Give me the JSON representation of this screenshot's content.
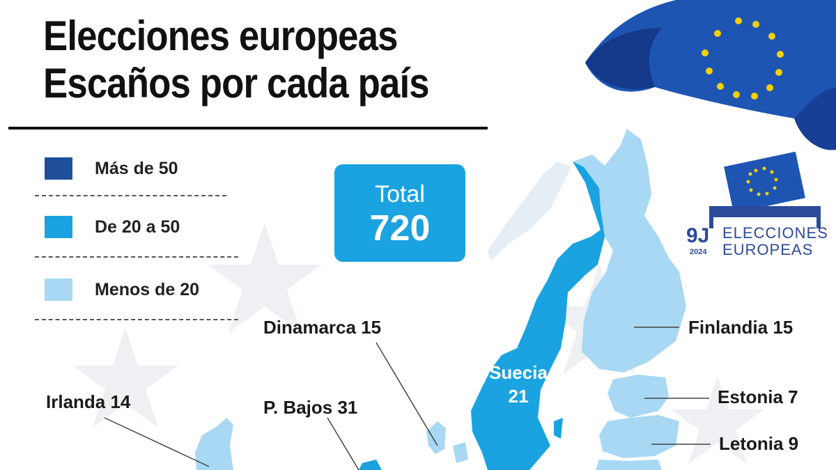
{
  "title": {
    "line1": "Elecciones europeas",
    "line2": "Escaños por cada país"
  },
  "legend": [
    {
      "label": "Más de 50",
      "color": "#1f4e9b"
    },
    {
      "label": "De 20 a 50",
      "color": "#1aa3e0"
    },
    {
      "label": "Menos de 20",
      "color": "#a8d8f3"
    }
  ],
  "total": {
    "label": "Total",
    "value": "720"
  },
  "countries": [
    {
      "name": "Dinamarca 15"
    },
    {
      "name": "Finlandia 15"
    },
    {
      "name": "Suecia",
      "seats": "21"
    },
    {
      "name": "Irlanda 14"
    },
    {
      "name": "P. Bajos 31"
    },
    {
      "name": "Estonia 7"
    },
    {
      "name": "Letonia 9"
    }
  ],
  "logo": {
    "brand": "9J",
    "year": "2024",
    "line1": "ELECCIONES",
    "line2": "EUROPEAS"
  },
  "colors": {
    "dark": "#1f4e9b",
    "mid": "#1aa3e0",
    "light": "#a8d8f3",
    "flag": "#1e55b3",
    "star": "#f5d000"
  }
}
